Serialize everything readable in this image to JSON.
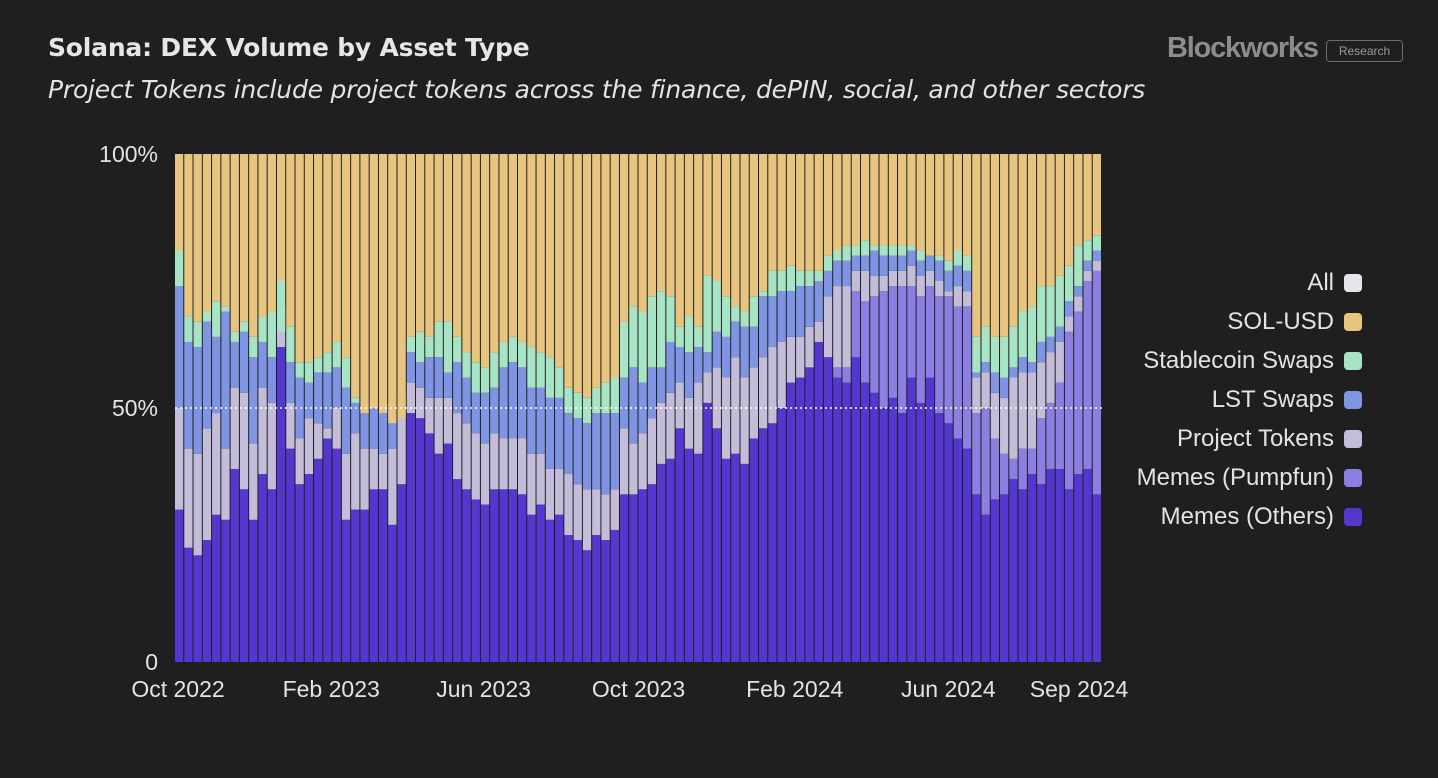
{
  "header": {
    "title": "Solana: DEX Volume by Asset Type",
    "subtitle": "Project Tokens include project tokens across the finance, dePIN, social, and other sectors",
    "brand": "Blockworks",
    "badge": "Research"
  },
  "colors": {
    "background": "#1f1f20",
    "All": "#e6e6ea",
    "SOL-USD": "#e8c57e",
    "Stablecoin Swaps": "#a7e3c5",
    "LST Swaps": "#7f95e3",
    "Project Tokens": "#c4bdd9",
    "Memes (Pumpfun)": "#8b7fe1",
    "Memes (Others)": "#5437cf"
  },
  "legend": [
    "All",
    "SOL-USD",
    "Stablecoin Swaps",
    "LST Swaps",
    "Project Tokens",
    "Memes (Pumpfun)",
    "Memes (Others)"
  ],
  "chart_data": {
    "type": "bar",
    "stacked": true,
    "normalized": true,
    "grid": false,
    "legend_position": "right",
    "title": "Solana: DEX Volume by Asset Type",
    "subtitle": "Project Tokens include project tokens across the finance, dePIN, social, and other sectors",
    "xlabel": "",
    "ylabel": "",
    "x_start": "2022-10-01",
    "x_end": "2024-09-30",
    "x_ticks": [
      "Oct 2022",
      "Feb 2023",
      "Jun 2023",
      "Oct 2023",
      "Feb 2024",
      "Jun 2024",
      "Sep 2024"
    ],
    "y_ticks": [
      "0",
      "50%",
      "100%"
    ],
    "ylim": [
      0,
      100
    ],
    "reference_line_y": 50,
    "series_order_bottom_to_top": [
      "Memes (Others)",
      "Memes (Pumpfun)",
      "Project Tokens",
      "LST Swaps",
      "Stablecoin Swaps",
      "SOL-USD"
    ],
    "cumulative_boundaries_pct": {
      "Memes (Others)": [
        30,
        22.5,
        21,
        24,
        29,
        28,
        38,
        34,
        28,
        37,
        34,
        62,
        42,
        35,
        37,
        40,
        44,
        42,
        28,
        30,
        30,
        34,
        34,
        27,
        35,
        49,
        48,
        45,
        41,
        43,
        36,
        34,
        32,
        31,
        34,
        34,
        34,
        33,
        29,
        31,
        28,
        29,
        25,
        24,
        22,
        25,
        24,
        26,
        33,
        33,
        34,
        35,
        39,
        40,
        46,
        42,
        41,
        51,
        46,
        40,
        41,
        39,
        44,
        46,
        47,
        50,
        55,
        56,
        58,
        63,
        60,
        56,
        55,
        60,
        55,
        53,
        50,
        52,
        49,
        56,
        51,
        56,
        49,
        47,
        44,
        42,
        33,
        29,
        32,
        33,
        36,
        34,
        37,
        35,
        38,
        38,
        34,
        37,
        38,
        33
      ],
      "Memes (Pumpfun)": [
        30,
        22.5,
        21,
        24,
        29,
        28,
        38,
        34,
        28,
        37,
        34,
        62,
        42,
        35,
        37,
        40,
        44,
        42,
        28,
        30,
        30,
        34,
        34,
        27,
        35,
        49,
        48,
        45,
        41,
        43,
        36,
        34,
        32,
        31,
        34,
        34,
        34,
        33,
        29,
        31,
        28,
        29,
        25,
        24,
        22,
        25,
        24,
        26,
        33,
        33,
        34,
        35,
        39,
        40,
        46,
        42,
        41,
        51,
        46,
        40,
        41,
        39,
        44,
        46,
        47,
        50,
        55,
        56,
        58,
        63,
        60,
        58,
        58,
        73,
        71,
        72,
        73,
        74,
        74,
        74,
        72,
        74,
        72,
        72,
        70,
        70,
        49,
        50,
        44,
        41,
        40,
        42,
        42,
        48,
        51,
        55,
        65,
        69,
        75,
        77
      ],
      "Project Tokens": [
        50,
        42,
        41,
        46,
        49,
        42,
        54,
        53,
        43,
        54,
        51,
        70,
        51,
        44,
        48,
        47,
        46,
        50,
        41,
        45,
        42,
        42,
        41,
        42,
        49,
        55,
        54,
        52,
        52,
        52,
        49,
        47,
        45,
        43,
        45,
        44,
        44,
        44,
        41,
        41,
        38,
        38,
        37,
        35,
        34,
        34,
        33,
        34,
        46,
        43,
        45,
        48,
        51,
        53,
        55,
        52,
        55,
        57,
        58,
        56,
        60,
        56,
        58,
        60,
        62,
        63,
        64,
        64,
        66,
        67,
        72,
        74,
        74,
        77,
        77,
        76,
        76,
        77,
        77,
        78,
        76,
        77,
        75,
        73,
        74,
        73,
        56,
        57,
        53,
        52,
        56,
        57,
        57,
        59,
        61,
        63,
        68,
        72,
        77,
        79
      ]
    },
    "cumulative_boundaries_pct_upper": {
      "LST Swaps": [
        74,
        63,
        62,
        67,
        64,
        69,
        63,
        65,
        60,
        63,
        60,
        65,
        59,
        56,
        55,
        57,
        57,
        58,
        54,
        51,
        50,
        52,
        51,
        51,
        53,
        61,
        59,
        60,
        60,
        57,
        59,
        56,
        53,
        53,
        54,
        58,
        59,
        58,
        54,
        54,
        52,
        52,
        49,
        48,
        47,
        49,
        49,
        49,
        56,
        58,
        55,
        58,
        58,
        63,
        62,
        61,
        62,
        61,
        65,
        64,
        67,
        66,
        66,
        72,
        72,
        73,
        73,
        74,
        74,
        75,
        77,
        79,
        79,
        80,
        80,
        81,
        80,
        80,
        80,
        81,
        79,
        80,
        79,
        77,
        78,
        77,
        57,
        59,
        57,
        56,
        58,
        60,
        59,
        63,
        64,
        66,
        71,
        74,
        79,
        81
      ],
      "Stablecoin Swaps": [
        81,
        68,
        67,
        69,
        71,
        70,
        65,
        67,
        64,
        68,
        69,
        75,
        66,
        59,
        59,
        60,
        61,
        63,
        60,
        52,
        49,
        50,
        49,
        47,
        48,
        64,
        65,
        64,
        67,
        67,
        64,
        61,
        59,
        58,
        61,
        63,
        64,
        63,
        62,
        61,
        60,
        58,
        54,
        53,
        52,
        54,
        55,
        56,
        67,
        70,
        69,
        72,
        73,
        72,
        66,
        68,
        66,
        76,
        75,
        72,
        70,
        69,
        72,
        73,
        77,
        77,
        78,
        77,
        77,
        77,
        80,
        81,
        82,
        82,
        83,
        82,
        82,
        82,
        82,
        82,
        81,
        80,
        80,
        79,
        81,
        80,
        64,
        66,
        64,
        64,
        66,
        69,
        70,
        74,
        74,
        76,
        78,
        82,
        83,
        84
      ]
    }
  }
}
